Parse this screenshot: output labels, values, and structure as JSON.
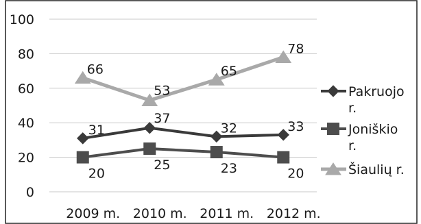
{
  "chart_data": {
    "type": "line",
    "categories": [
      "2009 m.",
      "2010 m.",
      "2011 m.",
      "2012 m."
    ],
    "ylim": [
      0,
      100
    ],
    "yticks": [
      0,
      20,
      40,
      60,
      80,
      100
    ],
    "grid": true,
    "legend_position": "right",
    "series": [
      {
        "name": "Pakruojo r.",
        "values": [
          31,
          37,
          32,
          33
        ],
        "marker": "diamond",
        "color": "#3a3a3a"
      },
      {
        "name": "Joniškio r.",
        "values": [
          20,
          25,
          23,
          20
        ],
        "marker": "square",
        "color": "#4d4d4d"
      },
      {
        "name": "Šiaulių r.",
        "values": [
          66,
          53,
          65,
          78
        ],
        "marker": "triangle",
        "color": "#a9a9a9"
      }
    ]
  },
  "legend": {
    "items": [
      {
        "lines": [
          "Pakruojo",
          "r."
        ]
      },
      {
        "lines": [
          "Joniškio",
          "r."
        ]
      },
      {
        "lines": [
          "Šiaulių r."
        ]
      }
    ]
  }
}
